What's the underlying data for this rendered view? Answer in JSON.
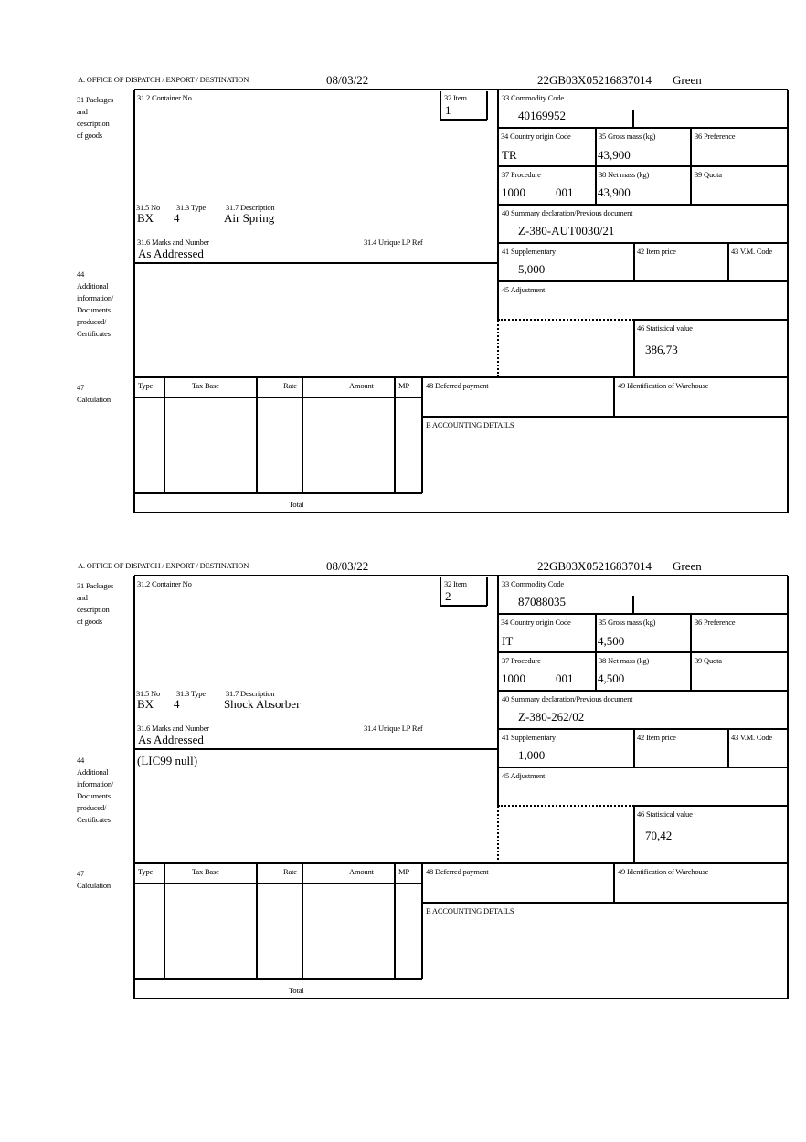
{
  "labels": {
    "office": "A.  OFFICE OF DISPATCH / EXPORT / DESTINATION",
    "packages": "31 Packages\nand\ndescription\nof goods",
    "container": "31.2 Container No",
    "item": "32 Item",
    "commodity": "33 Commodity Code",
    "country": "34 Country origin Code",
    "gross": "35 Gross mass (kg)",
    "preference": "36 Preference",
    "procedure": "37 Procedure",
    "net": "38 Net mass (kg)",
    "quota": "39 Quota",
    "summary": "40 Summary declaration/Previous document",
    "supplementary": "41 Supplementary",
    "item_price": "42 Item price",
    "vm_code": "43 V.M. Code",
    "adjustment": "45 Adjustment",
    "statistical": "46 Statistical value",
    "no": "31.5 No",
    "type": "31.3 Type",
    "description": "31.7 Description",
    "marks": "31.6 Marks and Number",
    "unique_ref": "31.4 Unique LP Ref",
    "additional": "44\nAdditional\ninformation/\nDocuments\nproduced/\nCertificates",
    "calculation": "47\nCalculation",
    "calc_columns": [
      "Type",
      "Tax Base",
      "Rate",
      "Amount",
      "MP"
    ],
    "deferred": "48 Deferred payment",
    "warehouse": "49 Identification of Warehouse",
    "accounting": "B ACCOUNTING DETAILS",
    "total": "Total"
  },
  "forms": [
    {
      "date": "08/03/22",
      "reference": "22GB03X05216837014",
      "route": "Green",
      "item": "1",
      "commodity_code": "40169952",
      "country_origin": "TR",
      "gross_mass": "43,900",
      "procedure_1": "1000",
      "procedure_2": "001",
      "net_mass": "43,900",
      "summary_doc": "Z-380-AUT0030/21",
      "supplementary": "5,000",
      "statistical_value": "386,73",
      "package_kind": "BX",
      "package_count": "4",
      "description": "Air Spring",
      "marks": "As Addressed",
      "additional_info": ""
    },
    {
      "date": "08/03/22",
      "reference": "22GB03X05216837014",
      "route": "Green",
      "item": "2",
      "commodity_code": "87088035",
      "country_origin": "IT",
      "gross_mass": "4,500",
      "procedure_1": "1000",
      "procedure_2": "001",
      "net_mass": "4,500",
      "summary_doc": "Z-380-262/02",
      "supplementary": "1,000",
      "statistical_value": "70,42",
      "package_kind": "BX",
      "package_count": "4",
      "description": "Shock Absorber",
      "marks": "As Addressed",
      "additional_info": "(LIC99 null)"
    }
  ]
}
